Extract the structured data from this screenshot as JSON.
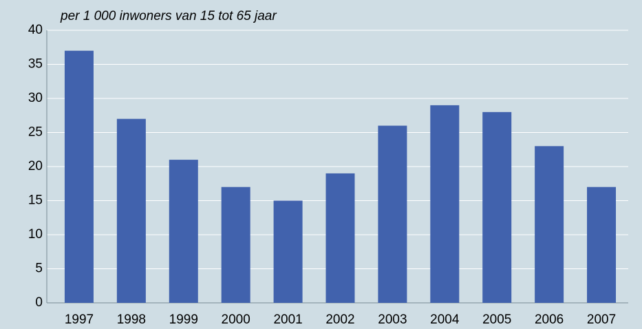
{
  "chart_data": {
    "type": "bar",
    "title": "per 1 000 inwoners van 15 tot 65 jaar",
    "categories": [
      "1997",
      "1998",
      "1999",
      "2000",
      "2001",
      "2002",
      "2003",
      "2004",
      "2005",
      "2006",
      "2007"
    ],
    "values": [
      37,
      27,
      21,
      17,
      15,
      19,
      26,
      29,
      28,
      23,
      17
    ],
    "color": "#4162ad",
    "ylim": [
      0,
      40
    ],
    "yticks": [
      0,
      5,
      10,
      15,
      20,
      25,
      30,
      35,
      40
    ],
    "grid": true
  }
}
